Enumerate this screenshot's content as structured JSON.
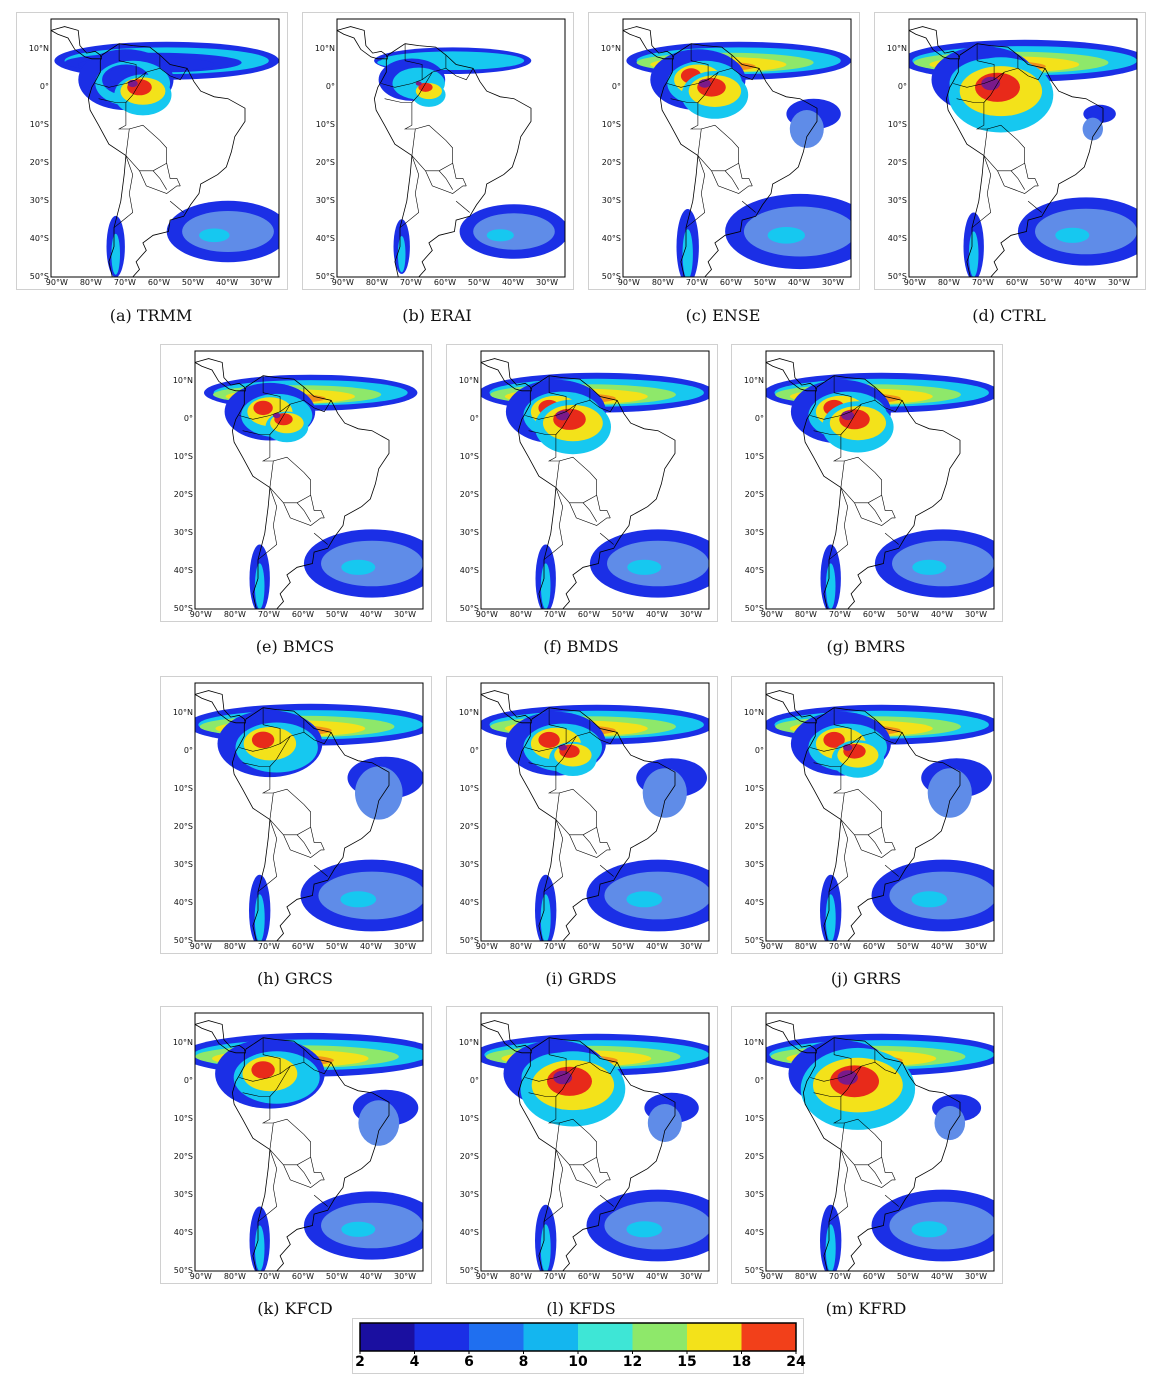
{
  "panels": [
    {
      "id": "a",
      "caption": "(a) TRMM"
    },
    {
      "id": "b",
      "caption": "(b) ERAI"
    },
    {
      "id": "c",
      "caption": "(c) ENSE"
    },
    {
      "id": "d",
      "caption": "(d) CTRL"
    },
    {
      "id": "e",
      "caption": "(e) BMCS"
    },
    {
      "id": "f",
      "caption": "(f) BMDS"
    },
    {
      "id": "g",
      "caption": "(g) BMRS"
    },
    {
      "id": "h",
      "caption": "(h) GRCS"
    },
    {
      "id": "i",
      "caption": "(i) GRDS"
    },
    {
      "id": "j",
      "caption": "(j) GRRS"
    },
    {
      "id": "k",
      "caption": "(k) KFCD"
    },
    {
      "id": "l",
      "caption": "(l) KFDS"
    },
    {
      "id": "m",
      "caption": "(m) KFRD"
    }
  ],
  "axes": {
    "lat_labels": [
      "10°N",
      "0°",
      "10°S",
      "20°S",
      "30°S",
      "40°S",
      "50°S"
    ],
    "lon_labels": [
      "90°W",
      "80°W",
      "70°W",
      "60°W",
      "50°W",
      "40°W",
      "30°W"
    ]
  },
  "colorbar": {
    "ticks": [
      "2",
      "4",
      "6",
      "8",
      "10",
      "12",
      "15",
      "18",
      "24"
    ],
    "colors": [
      "#1a0fa0",
      "#1b2fe6",
      "#1f6ff0",
      "#14b6ef",
      "#3ee6d6",
      "#8ee86a",
      "#f3e21a",
      "#f2401a"
    ]
  },
  "map_colors": {
    "weak": "#1b2fe6",
    "light": "#5f8ce8",
    "cyan": "#16c8f0",
    "teal": "#3ee6d6",
    "green": "#8ee86a",
    "yellow": "#f3e21a",
    "orange": "#f2901a",
    "red": "#e82a1a",
    "purple": "#7a1a8a",
    "land_line": "#000000"
  }
}
